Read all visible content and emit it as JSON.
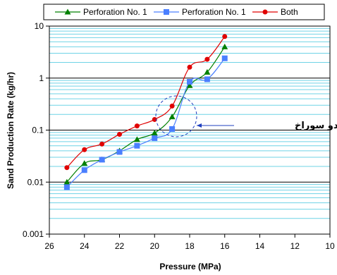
{
  "chart_data": {
    "type": "line",
    "title": "",
    "xlabel": "Pressure (MPa)",
    "ylabel": "Sand Production Rate (kg/hr)",
    "xlim": [
      26,
      10
    ],
    "x_reversed": true,
    "ylim": [
      0.001,
      10
    ],
    "yscale": "log",
    "grid": true,
    "legend_position": "top",
    "x_ticks": [
      "26",
      "24",
      "22",
      "20",
      "18",
      "16",
      "14",
      "12",
      "10"
    ],
    "y_ticks": [
      "10",
      "1",
      "0.1",
      "0.01",
      "0.001"
    ],
    "series": [
      {
        "name": "Perforation No. 1",
        "color": "#008000",
        "marker": "triangle",
        "x": [
          25,
          24,
          23,
          22,
          21,
          20,
          19,
          18,
          17,
          16
        ],
        "y": [
          0.01,
          0.023,
          0.027,
          0.04,
          0.066,
          0.088,
          0.18,
          0.72,
          1.3,
          4.0
        ]
      },
      {
        "name": "Perforation No. 1",
        "color": "#4A7FFF",
        "marker": "square",
        "x": [
          25,
          24,
          23,
          22,
          21,
          20,
          19,
          18,
          17,
          16
        ],
        "y": [
          0.008,
          0.017,
          0.027,
          0.038,
          0.05,
          0.07,
          0.105,
          0.85,
          0.95,
          2.4
        ]
      },
      {
        "name": "Both",
        "color": "#E00000",
        "marker": "circle",
        "x": [
          25,
          24,
          23,
          22,
          21,
          20,
          19,
          18,
          17,
          16
        ],
        "y": [
          0.019,
          0.042,
          0.054,
          0.083,
          0.12,
          0.16,
          0.29,
          1.62,
          2.3,
          6.3
        ]
      }
    ],
    "annotation": {
      "text": "تخریب هر دو سوراخ",
      "circle_x": 18.7,
      "circle_y": 0.1
    }
  }
}
